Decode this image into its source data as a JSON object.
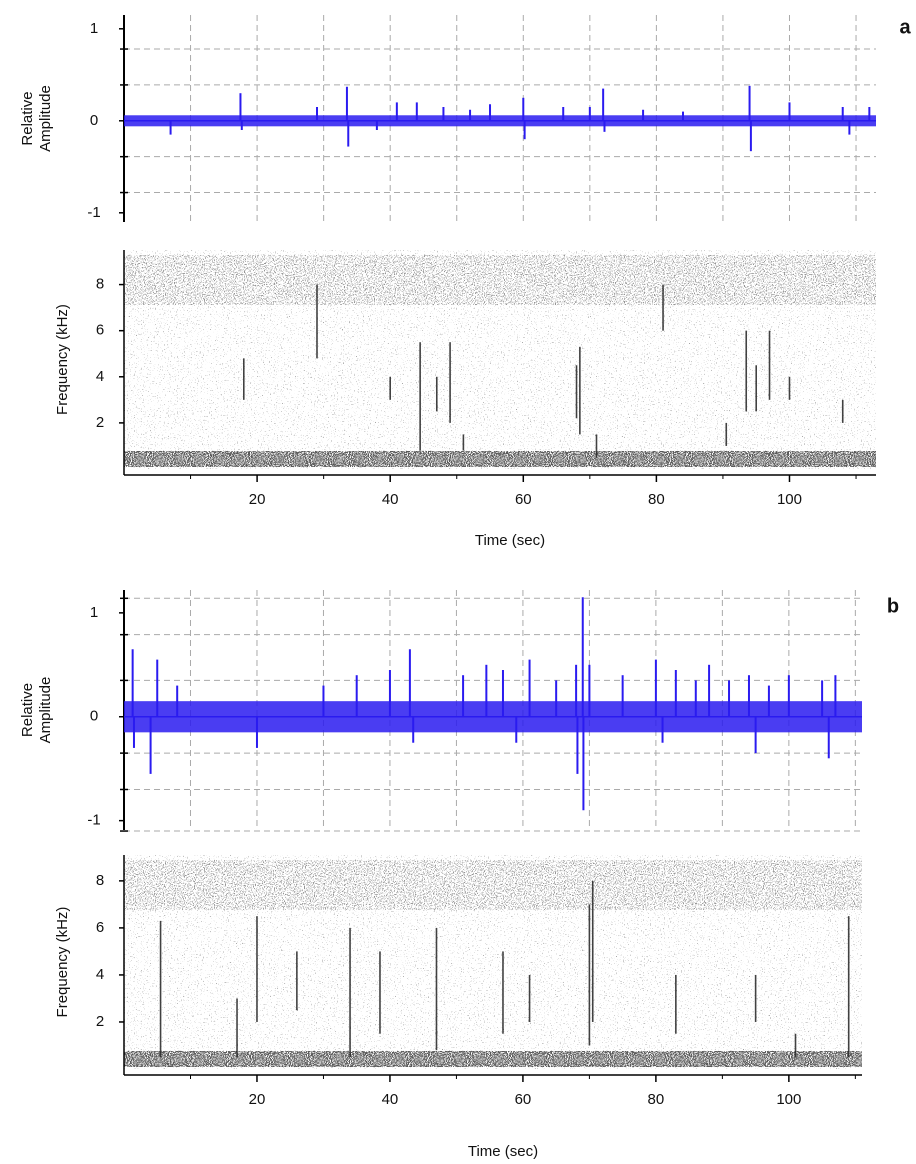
{
  "chart_data": [
    {
      "type": "waveform",
      "panel_label": "a",
      "y_label": [
        "Relative",
        "Amplitude"
      ],
      "xlim": [
        0,
        113
      ],
      "xgrid": [
        10,
        20,
        30,
        40,
        50,
        60,
        70,
        80,
        90,
        100,
        110
      ],
      "ylim": [
        -1.1,
        1.15
      ],
      "yticks": [
        -1,
        0,
        1
      ],
      "ygrid": [
        -0.78,
        -0.39,
        0.39,
        0.78
      ],
      "color": "#2a1bf0",
      "noise_band": 0.06,
      "x": [
        7,
        17.5,
        17.7,
        29,
        33.5,
        33.7,
        38,
        41,
        44,
        48,
        52,
        55,
        60,
        60.2,
        66,
        70,
        72,
        72.2,
        78,
        84,
        94,
        94.2,
        100,
        108,
        109,
        112
      ],
      "values": [
        -0.15,
        0.3,
        -0.1,
        0.15,
        0.37,
        -0.28,
        -0.1,
        0.2,
        0.2,
        0.15,
        0.12,
        0.18,
        0.25,
        -0.2,
        0.15,
        0.15,
        0.35,
        -0.12,
        0.12,
        0.1,
        0.38,
        -0.33,
        0.2,
        0.15,
        -0.15,
        0.15
      ]
    },
    {
      "type": "spectrogram",
      "y_label": "Frequency (kHz)",
      "x_label": "Time (sec)",
      "xlim": [
        0,
        113
      ],
      "xticks": [
        20,
        40,
        60,
        80,
        100
      ],
      "xminor": [
        10,
        30,
        50,
        70,
        90,
        110
      ],
      "ylim": [
        0,
        9.5
      ],
      "yticks": [
        2,
        4,
        6,
        8
      ],
      "x": [
        18,
        29,
        40,
        44.5,
        47,
        49,
        51,
        68,
        68.5,
        71,
        81,
        90.5,
        93.5,
        95,
        97,
        100,
        108
      ],
      "low": [
        3,
        4.8,
        3,
        0.8,
        2.5,
        2,
        0.8,
        2.2,
        1.5,
        0.5,
        6,
        1,
        2.5,
        2.5,
        3,
        3,
        2
      ],
      "high": [
        4.8,
        8,
        4,
        5.5,
        4,
        5.5,
        1.5,
        4.5,
        5.3,
        1.5,
        8,
        2,
        6,
        4.5,
        6,
        4,
        3
      ]
    },
    {
      "type": "waveform",
      "panel_label": "b",
      "y_label": [
        "Relative",
        "Amplitude"
      ],
      "xlim": [
        0,
        111
      ],
      "xgrid": [
        10,
        20,
        30,
        40,
        50,
        60,
        70,
        80,
        90,
        100,
        110
      ],
      "ylim": [
        -1.09,
        1.22
      ],
      "yticks": [
        -1,
        0,
        1
      ],
      "ygrid": [
        -1.1,
        -0.7,
        -0.35,
        0.35,
        0.79,
        1.14
      ],
      "color": "#2a1bf0",
      "noise_band": 0.15,
      "x": [
        1.3,
        1.5,
        4,
        5,
        8,
        20,
        30,
        35,
        40,
        43,
        43.5,
        51,
        54.5,
        57,
        59,
        61,
        65,
        68,
        68.2,
        69,
        69.1,
        70,
        75,
        80,
        81,
        83,
        86,
        88,
        91,
        94,
        95,
        97,
        100,
        105,
        106,
        107
      ],
      "values": [
        0.65,
        -0.3,
        -0.55,
        0.55,
        0.3,
        -0.3,
        0.3,
        0.4,
        0.45,
        0.65,
        -0.25,
        0.4,
        0.5,
        0.45,
        -0.25,
        0.55,
        0.35,
        0.5,
        -0.55,
        1.15,
        -0.9,
        0.5,
        0.4,
        0.55,
        -0.25,
        0.45,
        0.35,
        0.5,
        0.35,
        0.4,
        -0.35,
        0.3,
        0.4,
        0.35,
        -0.4,
        0.4
      ]
    },
    {
      "type": "spectrogram",
      "y_label": "Frequency (kHz)",
      "x_label": "Time (sec)",
      "xlim": [
        0,
        111
      ],
      "xticks": [
        20,
        40,
        60,
        80,
        100
      ],
      "xminor": [
        10,
        30,
        50,
        70,
        90,
        110
      ],
      "ylim": [
        0,
        9.1
      ],
      "yticks": [
        2,
        4,
        6,
        8
      ],
      "x": [
        5.5,
        17,
        20,
        26,
        34,
        38.5,
        47,
        57,
        61,
        70,
        70.5,
        83,
        95,
        101,
        109
      ],
      "low": [
        0.5,
        0.5,
        2,
        2.5,
        0.5,
        1.5,
        0.8,
        1.5,
        2,
        1,
        2,
        1.5,
        2,
        0.5,
        0.5
      ],
      "high": [
        6.3,
        3,
        6.5,
        5,
        6,
        5,
        6,
        5,
        4,
        7,
        8,
        4,
        4,
        1.5,
        6.5
      ]
    }
  ]
}
